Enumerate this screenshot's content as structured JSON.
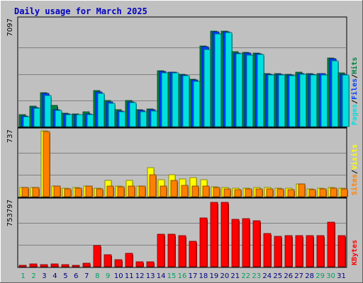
{
  "colors": {
    "background": "#C0C0C0",
    "panel": "#C0C0C0",
    "grid": "#808080",
    "title": "#0000C0",
    "hits": "#008040",
    "files": "#0040FF",
    "pages": "#00E0E0",
    "visits": "#FFFF00",
    "sites": "#FF8000",
    "kbytes": "#FF0000",
    "weekend_day": "#00A060",
    "weekday": "#000080"
  },
  "chart_data": {
    "type": "bar",
    "title": "Daily usage for March 2025",
    "days": [
      "1",
      "2",
      "3",
      "4",
      "5",
      "6",
      "7",
      "8",
      "9",
      "10",
      "11",
      "12",
      "13",
      "14",
      "15",
      "16",
      "17",
      "18",
      "19",
      "20",
      "21",
      "22",
      "23",
      "24",
      "25",
      "26",
      "27",
      "28",
      "29",
      "30",
      "31"
    ],
    "weekend_days": [
      "1",
      "2",
      "8",
      "9",
      "15",
      "16",
      "22",
      "23",
      "29",
      "30"
    ],
    "panels": [
      {
        "id": "hits-files-pages",
        "ymax_label": "7097",
        "ymax": 7097,
        "legend": [
          "Pages",
          "/",
          "Files",
          "/",
          "Hits"
        ],
        "series": [
          {
            "name": "Hits",
            "values": [
              800,
              1390,
              2310,
              1420,
              920,
              880,
              1000,
              2420,
              1760,
              1120,
              1760,
              1160,
              1180,
              3780,
              3670,
              3530,
              3180,
              5420,
              6420,
              6420,
              5070,
              4990,
              4950,
              3590,
              3570,
              3540,
              3650,
              3590,
              3590,
              4640,
              3600
            ]
          },
          {
            "name": "Files",
            "values": [
              720,
              1300,
              2220,
              1160,
              840,
              820,
              860,
              2330,
              1690,
              1050,
              1690,
              1080,
              1120,
              3700,
              3650,
              3490,
              3120,
              5360,
              6360,
              6360,
              4960,
              4940,
              4890,
              3530,
              3530,
              3480,
              3590,
              3540,
              3550,
              4560,
              3540
            ]
          },
          {
            "name": "Pages",
            "values": [
              650,
              1260,
              2100,
              1110,
              800,
              790,
              800,
              2230,
              1590,
              1010,
              1640,
              1000,
              1030,
              3630,
              3600,
              3430,
              3050,
              5210,
              6220,
              6330,
              4890,
              4830,
              4840,
              3480,
              3500,
              3430,
              3520,
              3470,
              3480,
              4450,
              3480
            ]
          }
        ]
      },
      {
        "id": "visits-sites",
        "ymax_label": "737",
        "ymax": 737,
        "legend": [
          "Sites",
          "/",
          "Visits"
        ],
        "series": [
          {
            "name": "Visits",
            "values": [
              105,
              105,
              737,
              120,
              95,
              100,
              120,
              95,
              180,
              120,
              185,
              120,
              325,
              190,
              245,
              195,
              215,
              190,
              110,
              100,
              95,
              95,
              100,
              100,
              95,
              95,
              145,
              90,
              95,
              100,
              95
            ]
          },
          {
            "name": "Sites",
            "values": [
              100,
              100,
              733,
              118,
              85,
              95,
              115,
              85,
              115,
              110,
              115,
              115,
              245,
              120,
              180,
              130,
              115,
              120,
              100,
              85,
              80,
              85,
              90,
              90,
              85,
              80,
              140,
              80,
              85,
              95,
              85
            ]
          }
        ]
      },
      {
        "id": "kbytes",
        "ymax_label": "753797",
        "ymax": 753797,
        "legend": [
          "KBytes"
        ],
        "series": [
          {
            "name": "KBytes",
            "values": [
              20000,
              32000,
              25000,
              30000,
              22000,
              20000,
              40000,
              240000,
              135000,
              85000,
              150000,
              55000,
              55000,
              375000,
              375000,
              360000,
              290000,
              560000,
              735000,
              735000,
              540000,
              555000,
              530000,
              385000,
              350000,
              360000,
              360000,
              360000,
              360000,
              510000,
              360000
            ]
          }
        ]
      }
    ]
  }
}
